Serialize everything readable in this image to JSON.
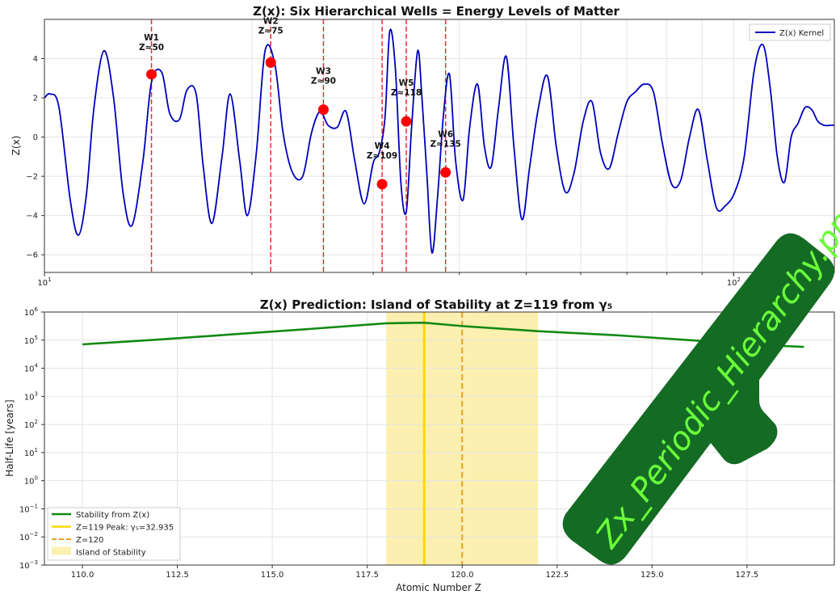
{
  "colors": {
    "kernel": "#0000bb",
    "wells": "#e03030",
    "stability": "#138a13",
    "peak": "#ffd700",
    "z120": "#f0a020",
    "island": "#fbf0b0",
    "stamp_bg": "#146b24",
    "stamp_text": "#6aff3a"
  },
  "chart_data": [
    {
      "type": "line",
      "title": "Z(x): Six Hierarchical Wells = Energy Levels of Matter",
      "ylabel": "Z(x)",
      "xscale": "log",
      "xlim": [
        10,
        140
      ],
      "ylim": [
        -6.9,
        6
      ],
      "yticks": [
        -6,
        -4,
        -2,
        0,
        2,
        4
      ],
      "xtick_labels": [
        {
          "value": 10,
          "base": "10",
          "exp": "1"
        },
        {
          "value": 100,
          "base": "10",
          "exp": "2"
        }
      ],
      "grid": true,
      "legend": {
        "placement": "top-right",
        "entries": [
          "Z(x) Kernel"
        ]
      },
      "series": [
        {
          "name": "Z(x) Kernel",
          "x": [
            10,
            10.2,
            10.5,
            10.9,
            11.2,
            11.5,
            11.8,
            12.2,
            12.6,
            13.0,
            13.4,
            13.9,
            14.3,
            14.8,
            15.2,
            15.7,
            16.1,
            16.6,
            17.0,
            17.5,
            18.1,
            18.6,
            19.2,
            19.7,
            20.3,
            20.9,
            21.6,
            22.2,
            22.9,
            23.7,
            24.4,
            25.1,
            25.8,
            26.6,
            27.4,
            28.2,
            29.1,
            30.0,
            30.6,
            31.2,
            31.7,
            32.3,
            32.9,
            33.5,
            34.1,
            34.8,
            35.3,
            35.9,
            36.5,
            37.2,
            37.9,
            38.7,
            39.5,
            40.5,
            41.4,
            42.5,
            43.5,
            44.5,
            45.6,
            46.8,
            48.0,
            49.3,
            50.6,
            52.1,
            53.7,
            55.3,
            57.0,
            58.7,
            60.5,
            62.3,
            64.1,
            66.0,
            68.0,
            70.0,
            72.0,
            74.2,
            76.5,
            78.8,
            81.3,
            83.8,
            86.3,
            88.9,
            91.6,
            94.4,
            97.3,
            100.4,
            103.6,
            107.1,
            110.3,
            113.0,
            115.7,
            118.5,
            121.2,
            124.0,
            126.9,
            129.8,
            132.5,
            135.3,
            138.0,
            140
          ],
          "y": [
            2.0,
            2.2,
            1.5,
            -3.2,
            -5.0,
            -3.0,
            1.5,
            4.4,
            2.0,
            -2.8,
            -4.5,
            -1.2,
            2.8,
            3.3,
            1.2,
            0.9,
            2.4,
            2.2,
            -1.5,
            -4.4,
            -1.0,
            2.2,
            -1.2,
            -4.0,
            -0.8,
            4.4,
            3.7,
            0.2,
            -1.8,
            -2.0,
            0.2,
            1.3,
            0.6,
            0.5,
            1.3,
            -1.2,
            -3.4,
            -1.3,
            -0.8,
            1.0,
            5.4,
            3.5,
            -2.3,
            -3.8,
            0.5,
            4.4,
            2.0,
            -2.0,
            -5.9,
            -3.0,
            1.0,
            3.2,
            -1.2,
            -3.2,
            0.5,
            2.7,
            -0.5,
            -1.5,
            1.5,
            4.1,
            -0.5,
            -4.2,
            -1.5,
            1.5,
            3.1,
            -0.5,
            -2.8,
            -1.8,
            0.8,
            1.8,
            -0.8,
            -1.6,
            0.2,
            1.8,
            2.3,
            2.7,
            2.3,
            -0.3,
            -2.4,
            -2.2,
            0.0,
            1.4,
            -1.2,
            -3.6,
            -3.5,
            -2.8,
            -1.0,
            3.4,
            4.7,
            2.5,
            -1.0,
            -2.3,
            0.0,
            0.7,
            1.5,
            1.4,
            0.8,
            0.6,
            0.6,
            0.6
          ]
        }
      ],
      "wells": [
        {
          "label": "W1",
          "sub": "Z≈50",
          "x": 14.3,
          "y": 3.2
        },
        {
          "label": "W2",
          "sub": "Z≈75",
          "x": 21.3,
          "y": 3.8
        },
        {
          "label": "W3",
          "sub": "Z≈90",
          "x": 25.4,
          "y": 1.4
        },
        {
          "label": "W4",
          "sub": "Z≈109",
          "x": 30.9,
          "y": -2.4
        },
        {
          "label": "W5",
          "sub": "Z≈118",
          "x": 33.5,
          "y": 0.8
        },
        {
          "label": "W6",
          "sub": "Z≈135",
          "x": 38.2,
          "y": -1.8
        }
      ]
    },
    {
      "type": "line",
      "title": "Z(x) Prediction: Island of Stability at Z=119 from γ₅",
      "xlabel": "Atomic Number Z",
      "ylabel": "Half-Life [years]",
      "yscale": "log",
      "xlim": [
        109,
        129.8
      ],
      "ylim": [
        -3,
        6
      ],
      "xticks": [
        "110.0",
        "112.5",
        "115.0",
        "117.5",
        "120.0",
        "122.5",
        "125.0",
        "127.5"
      ],
      "ytick_exponents": [
        "6",
        "5",
        "4",
        "3",
        "2",
        "1",
        "0",
        "−1",
        "−2",
        "−3"
      ],
      "grid": true,
      "legend": {
        "placement": "lower-left",
        "entries": [
          "Stability from Z(x)",
          "Z=119 Peak: γ₅=32.935",
          "Z=120",
          "Island of Stability"
        ]
      },
      "series": [
        {
          "name": "Stability from Z(x)",
          "x": [
            110,
            112,
            114,
            116,
            118,
            119,
            120,
            122,
            124,
            126,
            128,
            129
          ],
          "y_log10": [
            4.85,
            5.02,
            5.21,
            5.4,
            5.6,
            5.62,
            5.5,
            5.32,
            5.18,
            5.0,
            4.82,
            4.76
          ]
        }
      ],
      "peak_line": {
        "x": 119
      },
      "z120_line": {
        "x": 120
      },
      "island_span": [
        118,
        122
      ]
    }
  ],
  "stamp": {
    "text": "Zx_Periodic_Hierarchy.png"
  }
}
